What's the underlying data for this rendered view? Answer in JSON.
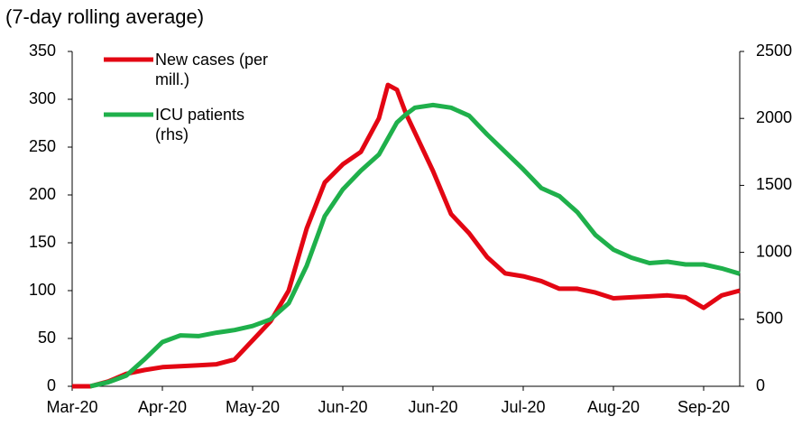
{
  "chart_data": {
    "type": "line",
    "subtitle": "(7-day rolling average)",
    "x": [
      0,
      0.2,
      0.4,
      0.6,
      0.8,
      1.0,
      1.2,
      1.4,
      1.6,
      1.8,
      2.0,
      2.2,
      2.4,
      2.6,
      2.8,
      3.0,
      3.2,
      3.4,
      3.5,
      3.6,
      3.7,
      3.8,
      4.0,
      4.2,
      4.4,
      4.6,
      4.8,
      5.0,
      5.2,
      5.4,
      5.6,
      5.8,
      6.0,
      6.2,
      6.4,
      6.6,
      6.8,
      7.0,
      7.2,
      7.4
    ],
    "series": [
      {
        "name": "New cases (per mill.)",
        "color": "#e30613",
        "axis": "y",
        "values": [
          0,
          0,
          5,
          13,
          17,
          20,
          21,
          22,
          23,
          28,
          48,
          68,
          100,
          165,
          213,
          232,
          245,
          280,
          315,
          310,
          285,
          265,
          225,
          180,
          160,
          135,
          118,
          115,
          110,
          102,
          102,
          98,
          92,
          93,
          94,
          95,
          93,
          82,
          95,
          100
        ]
      },
      {
        "name": "ICU patients (rhs)",
        "color": "#1fb04b",
        "axis": "y2",
        "values": [
          null,
          0,
          30,
          80,
          200,
          330,
          380,
          375,
          400,
          420,
          450,
          500,
          620,
          900,
          1270,
          1470,
          1610,
          1730,
          1850,
          1970,
          2030,
          2080,
          2100,
          2080,
          2020,
          1880,
          1750,
          1620,
          1480,
          1420,
          1300,
          1130,
          1020,
          960,
          920,
          930,
          910,
          910,
          880,
          840
        ]
      }
    ],
    "xlim": [
      0,
      7.4
    ],
    "xticks": [
      {
        "value": 0,
        "label": "Mar-20"
      },
      {
        "value": 1,
        "label": "Apr-20"
      },
      {
        "value": 2,
        "label": "May-20"
      },
      {
        "value": 3,
        "label": "Jun-20"
      },
      {
        "value": 4,
        "label": "Jun-20"
      },
      {
        "value": 5,
        "label": "Jul-20"
      },
      {
        "value": 6,
        "label": "Aug-20"
      },
      {
        "value": 7,
        "label": "Sep-20"
      }
    ],
    "ylim": [
      0,
      350
    ],
    "yticks": [
      0,
      50,
      100,
      150,
      200,
      250,
      300,
      350
    ],
    "y2lim": [
      0,
      2500
    ],
    "y2ticks": [
      0,
      500,
      1000,
      1500,
      2000,
      2500
    ],
    "legend": "top-left"
  }
}
